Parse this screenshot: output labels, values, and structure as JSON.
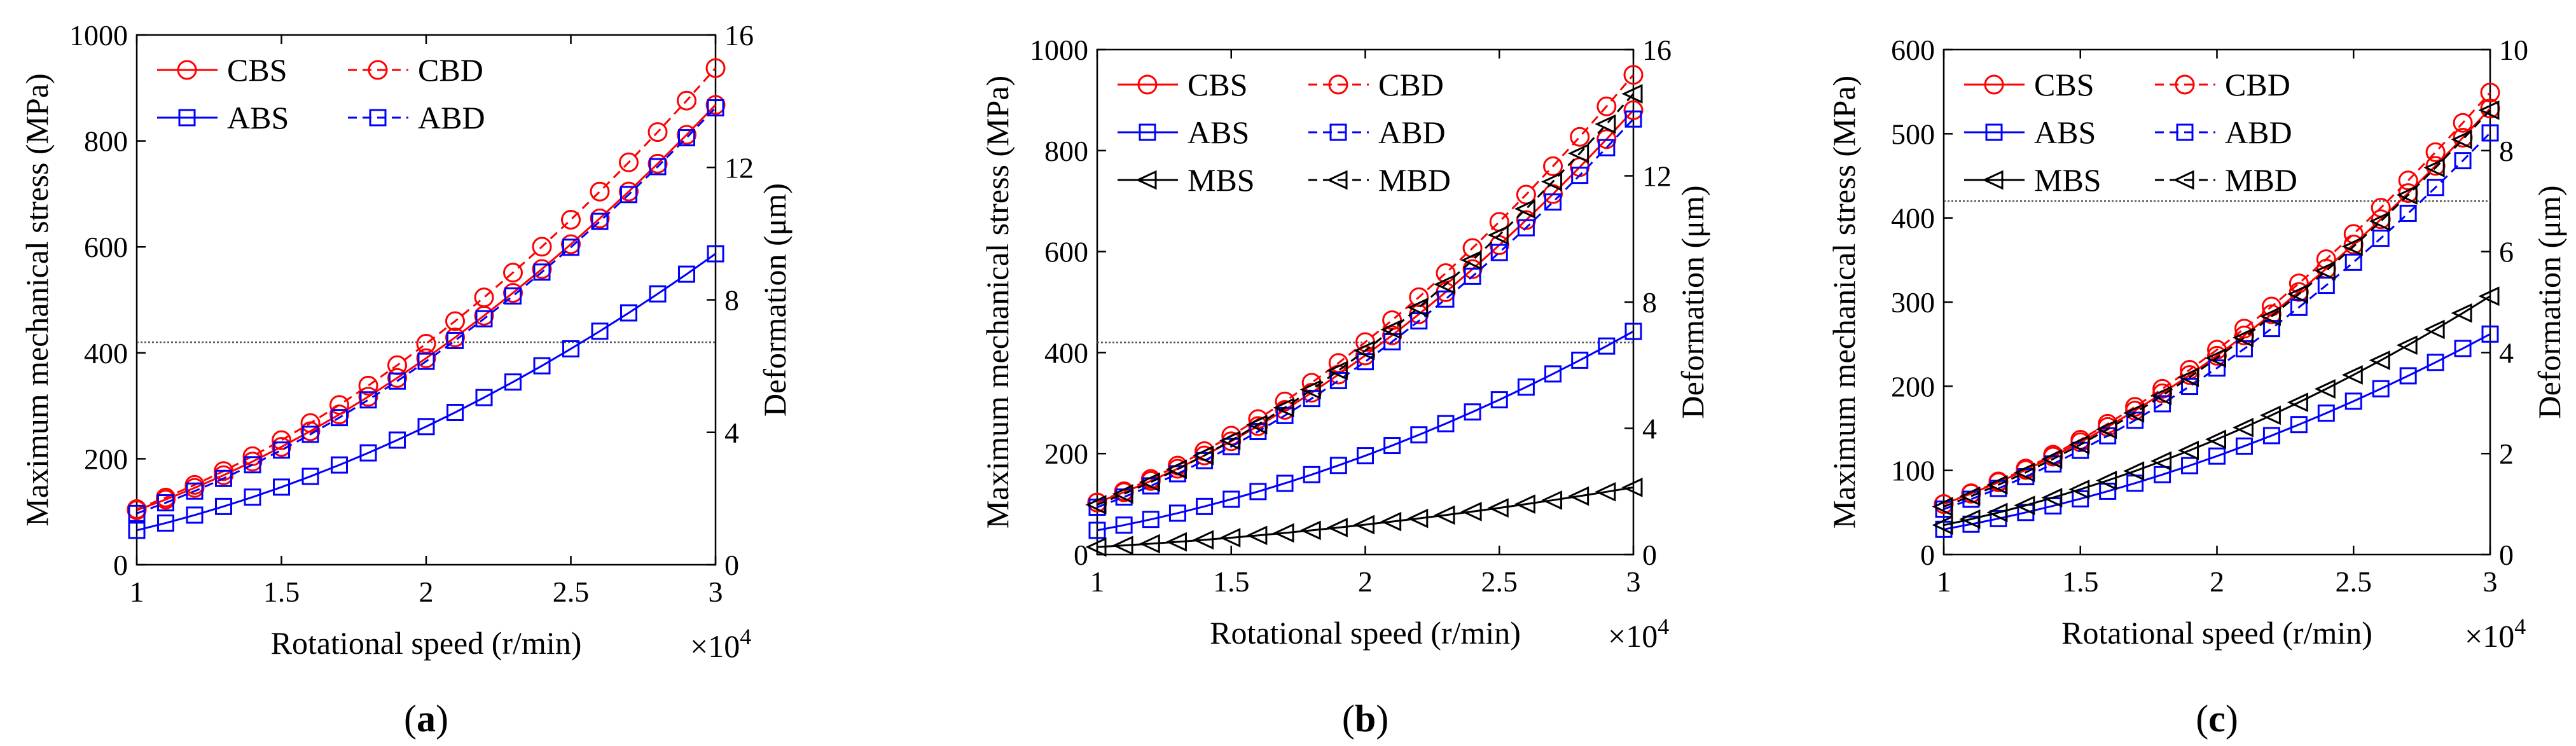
{
  "figure": {
    "x_multiplier": "×10",
    "x_multiplier_exp": "4",
    "colors": {
      "red": "#ff0000",
      "blue": "#0000ff",
      "black": "#000000",
      "threshold": "#555555"
    }
  },
  "chart_data": [
    {
      "panel": "a",
      "type": "line",
      "panel_label": "a",
      "xlabel": "Rotational speed (r/min)",
      "ylabel": "Maximum mechanical stress (MPa)",
      "y2label": "Deformation (μm)",
      "x_multiplier": 10000,
      "xlim": [
        1,
        3
      ],
      "ylim": [
        0,
        1000
      ],
      "y2lim": [
        0,
        16
      ],
      "xticks": [
        1,
        1.5,
        2,
        2.5,
        3
      ],
      "yticks": [
        0,
        200,
        400,
        600,
        800,
        1000
      ],
      "y2ticks": [
        0,
        4,
        8,
        12,
        16
      ],
      "threshold_y": 420,
      "series": [
        {
          "name": "CBS",
          "axis": "left",
          "color": "#ff0000",
          "marker": "circle",
          "dashed": false,
          "start": 103,
          "end": 868,
          "exp": 2
        },
        {
          "name": "CBD",
          "axis": "right",
          "color": "#ff0000",
          "marker": "circle",
          "dashed": true,
          "start": 1.68,
          "end": 15.0,
          "exp": 2
        },
        {
          "name": "ABS",
          "axis": "left",
          "color": "#0000ff",
          "marker": "square",
          "dashed": false,
          "start": 65,
          "end": 587,
          "exp": 2
        },
        {
          "name": "ABD",
          "axis": "right",
          "color": "#0000ff",
          "marker": "square",
          "dashed": true,
          "start": 1.55,
          "end": 13.8,
          "exp": 2
        }
      ],
      "legend": [
        {
          "name": "CBS",
          "series": 0
        },
        {
          "name": "CBD",
          "series": 1
        },
        {
          "name": "ABS",
          "series": 2
        },
        {
          "name": "ABD",
          "series": 3
        }
      ]
    },
    {
      "panel": "b",
      "type": "line",
      "panel_label": "b",
      "xlabel": "Rotational speed (r/min)",
      "ylabel": "Maximum mechanical stress (MPa)",
      "y2label": "Deformation (μm)",
      "x_multiplier": 10000,
      "xlim": [
        1,
        3
      ],
      "ylim": [
        0,
        1000
      ],
      "y2lim": [
        0,
        16
      ],
      "xticks": [
        1,
        1.5,
        2,
        2.5,
        3
      ],
      "yticks": [
        0,
        200,
        400,
        600,
        800,
        1000
      ],
      "y2ticks": [
        0,
        4,
        8,
        12,
        16
      ],
      "threshold_y": 420,
      "series": [
        {
          "name": "CBS",
          "axis": "left",
          "color": "#ff0000",
          "marker": "circle",
          "dashed": false,
          "start": 103,
          "end": 880,
          "exp": 2
        },
        {
          "name": "CBD",
          "axis": "right",
          "color": "#ff0000",
          "marker": "circle",
          "dashed": true,
          "start": 1.65,
          "end": 15.2,
          "exp": 2
        },
        {
          "name": "ABS",
          "axis": "left",
          "color": "#0000ff",
          "marker": "square",
          "dashed": false,
          "start": 48,
          "end": 442,
          "exp": 2
        },
        {
          "name": "ABD",
          "axis": "right",
          "color": "#0000ff",
          "marker": "square",
          "dashed": true,
          "start": 1.5,
          "end": 13.8,
          "exp": 2
        },
        {
          "name": "MBS",
          "axis": "left",
          "color": "#000000",
          "marker": "triangle-left",
          "dashed": false,
          "start": 15,
          "end": 133,
          "exp": 2
        },
        {
          "name": "MBD",
          "axis": "right",
          "color": "#000000",
          "marker": "triangle-left",
          "dashed": true,
          "start": 1.58,
          "end": 14.6,
          "exp": 2
        }
      ],
      "legend": [
        {
          "name": "CBS",
          "series": 0
        },
        {
          "name": "CBD",
          "series": 1
        },
        {
          "name": "ABS",
          "series": 2
        },
        {
          "name": "ABD",
          "series": 3
        },
        {
          "name": "MBS",
          "series": 4
        },
        {
          "name": "MBD",
          "series": 5
        }
      ]
    },
    {
      "panel": "c",
      "type": "line",
      "panel_label": "c",
      "xlabel": "Rotational speed (r/min)",
      "ylabel": "Maximum mechanical stress (MPa)",
      "y2label": "Deformation (μm)",
      "x_multiplier": 10000,
      "xlim": [
        1,
        3
      ],
      "ylim": [
        0,
        600
      ],
      "y2lim": [
        0,
        10
      ],
      "xticks": [
        1,
        1.5,
        2,
        2.5,
        3
      ],
      "yticks": [
        0,
        100,
        200,
        300,
        400,
        500,
        600
      ],
      "y2ticks": [
        0,
        2,
        4,
        6,
        8,
        10
      ],
      "threshold_y": 420,
      "series": [
        {
          "name": "CBS",
          "axis": "left",
          "color": "#ff0000",
          "marker": "circle",
          "dashed": false,
          "start": 60,
          "end": 530,
          "exp": 2
        },
        {
          "name": "CBD",
          "axis": "right",
          "color": "#ff0000",
          "marker": "circle",
          "dashed": true,
          "start": 1.0,
          "end": 9.15,
          "exp": 2
        },
        {
          "name": "ABS",
          "axis": "left",
          "color": "#0000ff",
          "marker": "square",
          "dashed": false,
          "start": 30,
          "end": 262,
          "exp": 2
        },
        {
          "name": "ABD",
          "axis": "right",
          "color": "#0000ff",
          "marker": "square",
          "dashed": true,
          "start": 0.9,
          "end": 8.35,
          "exp": 2
        },
        {
          "name": "MBS",
          "axis": "left",
          "color": "#000000",
          "marker": "triangle-left",
          "dashed": false,
          "start": 35,
          "end": 307,
          "exp": 2
        },
        {
          "name": "MBD",
          "axis": "right",
          "color": "#000000",
          "marker": "triangle-left",
          "dashed": true,
          "start": 0.95,
          "end": 8.8,
          "exp": 2
        }
      ],
      "legend": [
        {
          "name": "CBS",
          "series": 0
        },
        {
          "name": "CBD",
          "series": 1
        },
        {
          "name": "ABS",
          "series": 2
        },
        {
          "name": "ABD",
          "series": 3
        },
        {
          "name": "MBS",
          "series": 4
        },
        {
          "name": "MBD",
          "series": 5
        }
      ]
    }
  ]
}
